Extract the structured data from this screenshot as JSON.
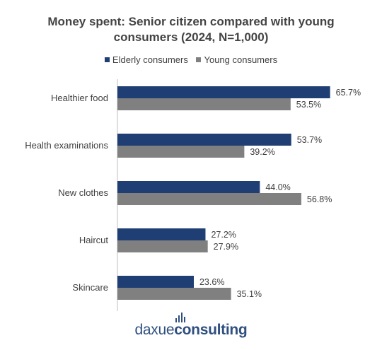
{
  "title_line1": "Money spent: Senior citizen compared with young",
  "title_line2": "consumers (2024, N=1,000)",
  "logo": {
    "part1": "daxue",
    "part2": "consulting"
  },
  "colors": {
    "elderly": "#1f3e73",
    "young": "#808080",
    "axis": "#bfbfbf"
  },
  "chart_data": {
    "type": "bar",
    "orientation": "horizontal",
    "title": "Money spent: Senior citizen compared with young consumers (2024, N=1,000)",
    "categories": [
      "Healthier food",
      "Health examinations",
      "New clothes",
      "Haircut",
      "Skincare"
    ],
    "series": [
      {
        "name": "Elderly consumers",
        "values": [
          65.7,
          53.7,
          44.0,
          27.2,
          23.6
        ],
        "labels": [
          "65.7%",
          "53.7%",
          "44.0%",
          "27.2%",
          "23.6%"
        ]
      },
      {
        "name": "Young consumers",
        "values": [
          53.5,
          39.2,
          56.8,
          27.9,
          35.1
        ],
        "labels": [
          "53.5%",
          "39.2%",
          "56.8%",
          "27.9%",
          "35.1%"
        ]
      }
    ],
    "legend_position": "top",
    "xlim": [
      0,
      66
    ],
    "grid": false
  }
}
